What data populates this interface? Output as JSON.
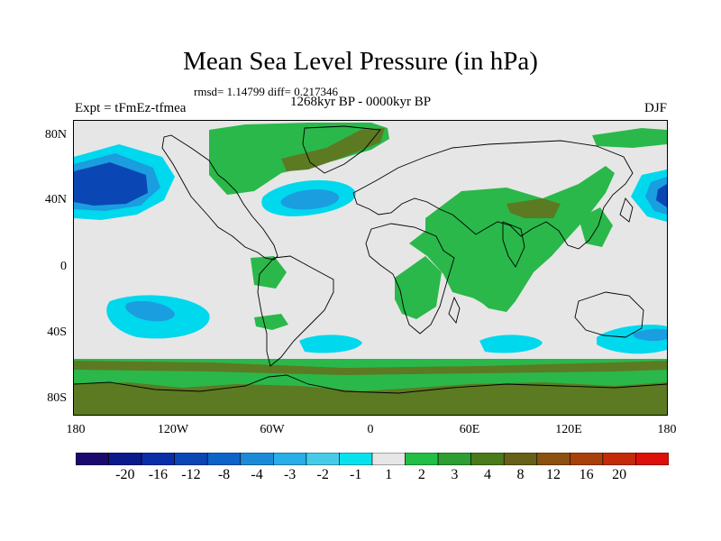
{
  "title": "Mean Sea Level Pressure (in hPa)",
  "stats": "rmsd= 1.14799 diff= 0.217346",
  "experiment": "Expt = tFmEz-tfmea",
  "period": "1268kyr BP - 0000kyr BP",
  "season": "DJF",
  "lat_labels": [
    "80N",
    "40N",
    "0",
    "40S",
    "80S"
  ],
  "lon_labels": [
    "180",
    "120W",
    "60W",
    "0",
    "60E",
    "120E",
    "180"
  ],
  "colorbar": {
    "colors": [
      "#1a0a6e",
      "#0a1a8c",
      "#0a2ea8",
      "#0a46b4",
      "#0c64c8",
      "#1c8ad8",
      "#28aee8",
      "#46cce8",
      "#08e2ec",
      "#e6e6e6",
      "#22be46",
      "#2e9e32",
      "#4a7a1a",
      "#666018",
      "#8c5010",
      "#a8400c",
      "#c42a0a",
      "#dc1008"
    ],
    "labels": [
      "-20",
      "-16",
      "-12",
      "-8",
      "-4",
      "-3",
      "-2",
      "-1",
      "1",
      "2",
      "3",
      "4",
      "8",
      "12",
      "16",
      "20"
    ]
  },
  "map_colors": {
    "background": "#e6e6e6",
    "green_light": "#2ab84a",
    "green_dark": "#5c7a22",
    "blue_light": "#00d8ee",
    "blue_mid": "#1a9ee0",
    "blue_dark": "#0a46b4",
    "coast": "#000000"
  }
}
